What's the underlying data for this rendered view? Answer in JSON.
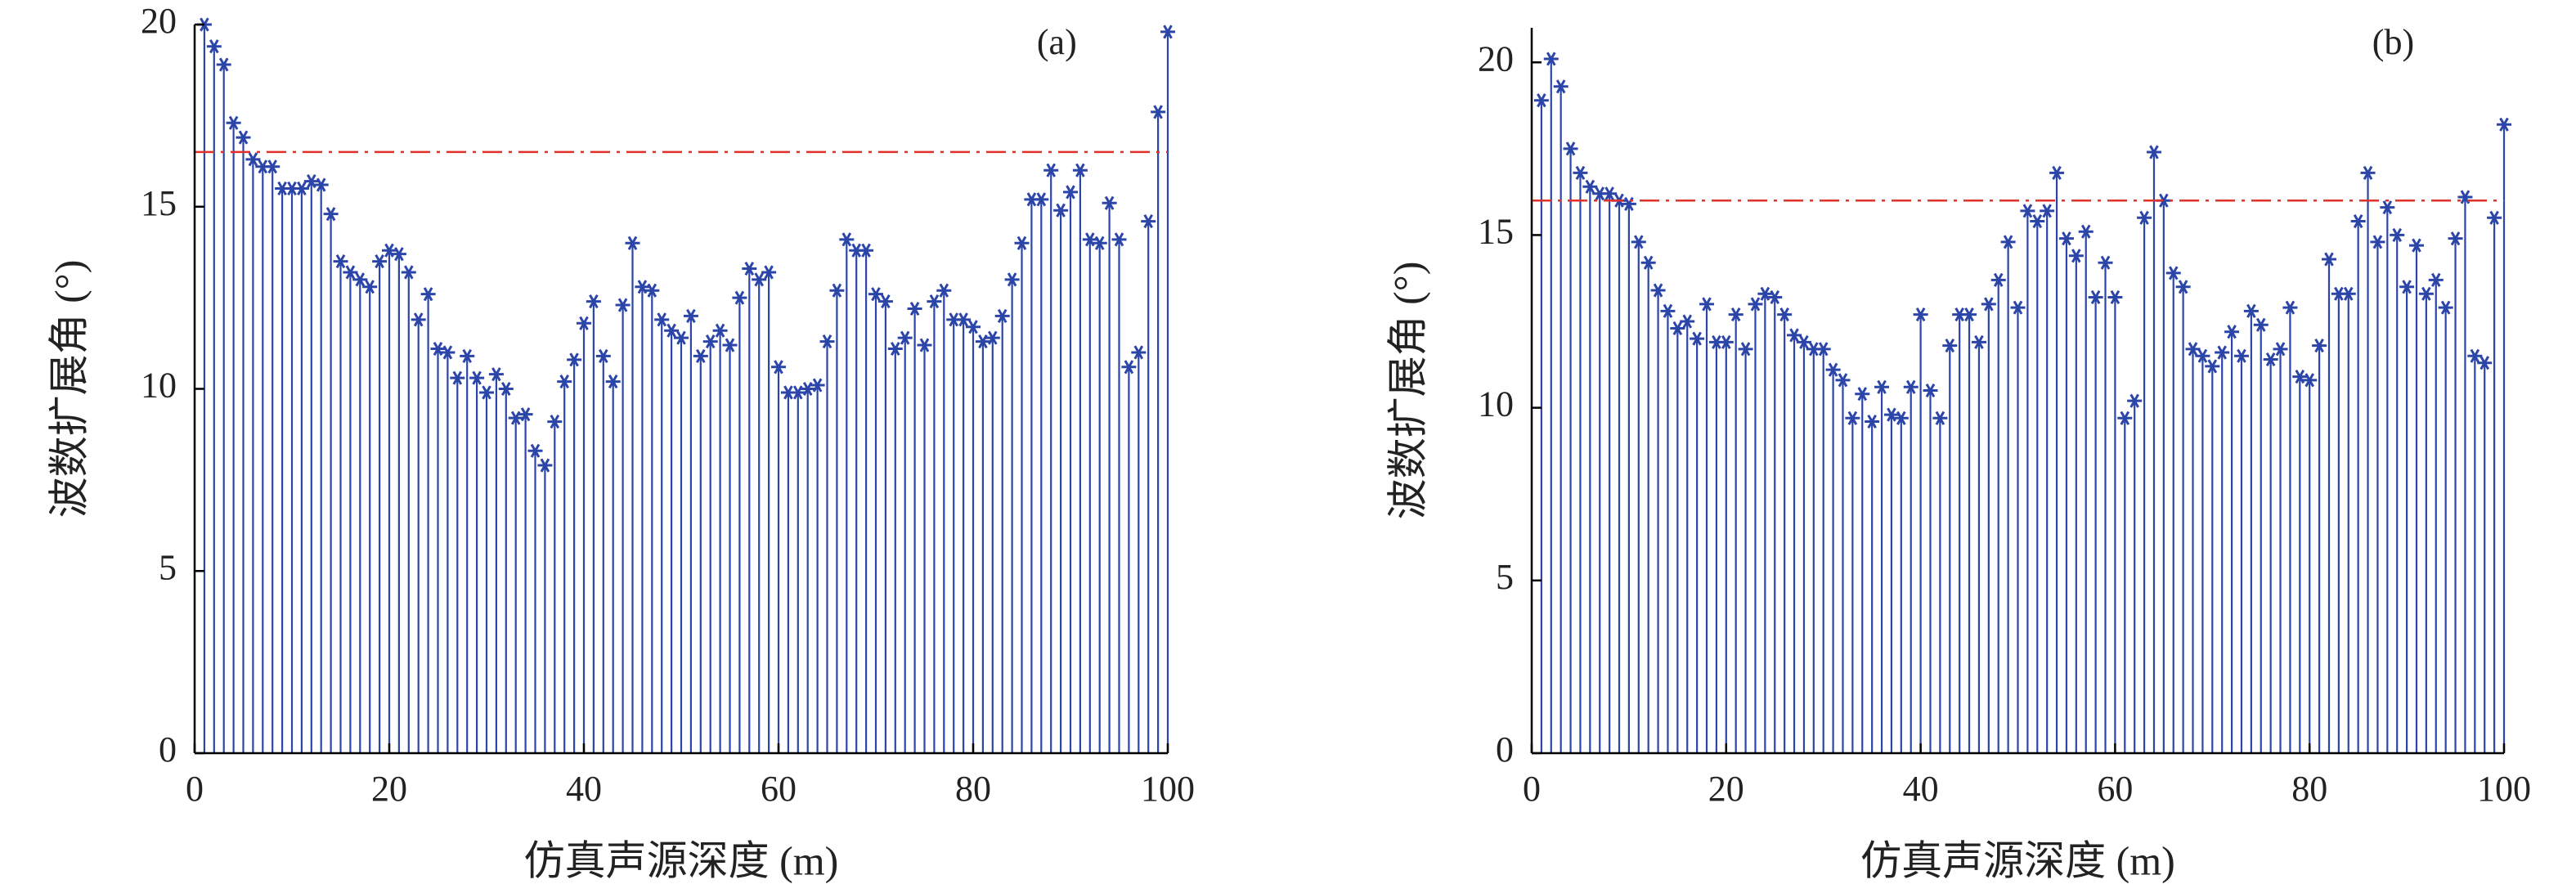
{
  "chart_data": [
    {
      "type": "stem",
      "label": "(a)",
      "ylabel": "波数扩展角 (°)",
      "xlabel": "仿真声源深度 (m)",
      "color": "#2b45a8",
      "threshold": 16.5,
      "threshold_color": "#e0302a",
      "xlim": [
        0,
        100
      ],
      "xticks": [
        0,
        20,
        40,
        60,
        80,
        100
      ],
      "ylim": [
        0,
        20
      ],
      "yticks": [
        0,
        5,
        10,
        15,
        20
      ],
      "x": [
        1,
        2,
        3,
        4,
        5,
        6,
        7,
        8,
        9,
        10,
        11,
        12,
        13,
        14,
        15,
        16,
        17,
        18,
        19,
        20,
        21,
        22,
        23,
        24,
        25,
        26,
        27,
        28,
        29,
        30,
        31,
        32,
        33,
        34,
        35,
        36,
        37,
        38,
        39,
        40,
        41,
        42,
        43,
        44,
        45,
        46,
        47,
        48,
        49,
        50,
        51,
        52,
        53,
        54,
        55,
        56,
        57,
        58,
        59,
        60,
        61,
        62,
        63,
        64,
        65,
        66,
        67,
        68,
        69,
        70,
        71,
        72,
        73,
        74,
        75,
        76,
        77,
        78,
        79,
        80,
        81,
        82,
        83,
        84,
        85,
        86,
        87,
        88,
        89,
        90,
        91,
        92,
        93,
        94,
        95,
        96,
        97,
        98,
        99,
        100
      ],
      "values": [
        20,
        19.4,
        18.9,
        17.3,
        16.9,
        16.3,
        16.1,
        16.1,
        15.5,
        15.5,
        15.5,
        15.7,
        15.6,
        14.8,
        13.5,
        13.2,
        13.0,
        12.8,
        13.5,
        13.8,
        13.7,
        13.2,
        11.9,
        12.6,
        11.1,
        11.0,
        10.3,
        10.9,
        10.3,
        9.9,
        10.4,
        10.0,
        9.2,
        9.3,
        8.3,
        7.9,
        9.1,
        10.2,
        10.8,
        11.8,
        12.4,
        10.9,
        10.2,
        12.3,
        14.0,
        12.8,
        12.7,
        11.9,
        11.6,
        11.4,
        12.0,
        10.9,
        11.3,
        11.6,
        11.2,
        12.5,
        13.3,
        13.0,
        13.2,
        10.6,
        9.9,
        9.9,
        10.0,
        10.1,
        11.3,
        12.7,
        14.1,
        13.8,
        13.8,
        12.6,
        12.4,
        11.1,
        11.4,
        12.2,
        11.2,
        12.4,
        12.7,
        11.9,
        11.9,
        11.7,
        11.3,
        11.4,
        12.0,
        13.0,
        14.0,
        15.2,
        15.2,
        16.0,
        14.9,
        15.4,
        16.0,
        14.1,
        14.0,
        15.1,
        14.1,
        10.6,
        11.0,
        14.6,
        17.6,
        19.8
      ]
    },
    {
      "type": "stem",
      "label": "(b)",
      "ylabel": "波数扩展角 (°)",
      "xlabel": "仿真声源深度 (m)",
      "color": "#2b45a8",
      "threshold": 16,
      "threshold_color": "#e0302a",
      "xlim": [
        0,
        100
      ],
      "xticks": [
        0,
        20,
        40,
        60,
        80,
        100
      ],
      "ylim": [
        0,
        21
      ],
      "yticks": [
        0,
        5,
        10,
        15,
        20
      ],
      "x": [
        1,
        2,
        3,
        4,
        5,
        6,
        7,
        8,
        9,
        10,
        11,
        12,
        13,
        14,
        15,
        16,
        17,
        18,
        19,
        20,
        21,
        22,
        23,
        24,
        25,
        26,
        27,
        28,
        29,
        30,
        31,
        32,
        33,
        34,
        35,
        36,
        37,
        38,
        39,
        40,
        41,
        42,
        43,
        44,
        45,
        46,
        47,
        48,
        49,
        50,
        51,
        52,
        53,
        54,
        55,
        56,
        57,
        58,
        59,
        60,
        61,
        62,
        63,
        64,
        65,
        66,
        67,
        68,
        69,
        70,
        71,
        72,
        73,
        74,
        75,
        76,
        77,
        78,
        79,
        80,
        81,
        82,
        83,
        84,
        85,
        86,
        87,
        88,
        89,
        90,
        91,
        92,
        93,
        94,
        95,
        96,
        97,
        98,
        99,
        100
      ],
      "values": [
        18.9,
        20.1,
        19.3,
        17.5,
        16.8,
        16.4,
        16.2,
        16.2,
        16.0,
        15.9,
        14.8,
        14.2,
        13.4,
        12.8,
        12.3,
        12.5,
        12.0,
        13.0,
        11.9,
        11.9,
        12.7,
        11.7,
        13.0,
        13.3,
        13.2,
        12.7,
        12.1,
        11.9,
        11.7,
        11.7,
        11.1,
        10.8,
        9.7,
        10.4,
        9.6,
        10.6,
        9.8,
        9.7,
        10.6,
        12.7,
        10.5,
        9.7,
        11.8,
        12.7,
        12.7,
        11.9,
        13.0,
        13.7,
        14.8,
        12.9,
        15.7,
        15.4,
        15.7,
        16.8,
        14.9,
        14.4,
        15.1,
        13.2,
        14.2,
        13.2,
        9.7,
        10.2,
        15.5,
        17.4,
        16.0,
        13.9,
        13.5,
        11.7,
        11.5,
        11.2,
        11.6,
        12.2,
        11.5,
        12.8,
        12.4,
        11.4,
        11.7,
        12.9,
        10.9,
        10.8,
        11.8,
        14.3,
        13.3,
        13.3,
        15.4,
        16.8,
        14.8,
        15.8,
        15.0,
        13.5,
        14.7,
        13.3,
        13.7,
        12.9,
        14.9,
        16.1,
        11.5,
        11.3,
        15.5,
        18.2
      ]
    }
  ]
}
